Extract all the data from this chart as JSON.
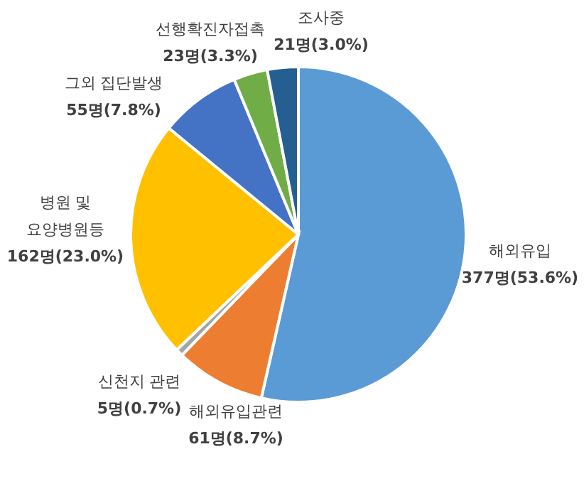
{
  "chart_data": {
    "type": "pie",
    "categories": [
      "해외유입",
      "해외유입관련",
      "신천지 관련",
      "병원 및 요양병원등",
      "그외 집단발생",
      "선행확진자접촉",
      "조사중"
    ],
    "values": [
      377,
      61,
      5,
      162,
      55,
      23,
      21
    ],
    "value_labels": [
      "377명(53.6%)",
      "61명(8.7%)",
      "5명(0.7%)",
      "162명(23.0%)",
      "55명(7.8%)",
      "23명(3.3%)",
      "21명(3.0%)"
    ],
    "colors": [
      "#5b9bd5",
      "#ed7d31",
      "#a5a5a5",
      "#ffc000",
      "#4472c4",
      "#70ad47",
      "#255e91"
    ],
    "legend": false
  }
}
